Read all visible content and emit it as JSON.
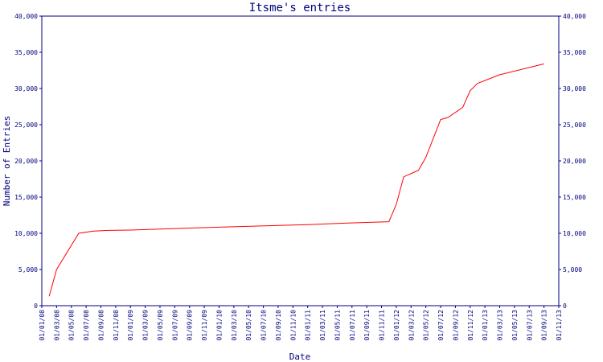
{
  "chart_data": {
    "type": "line",
    "title": "Itsme's entries",
    "x_label": "Date",
    "y_label": "Number of Entries",
    "x": [
      "01/02/08",
      "01/03/08",
      "01/06/08",
      "01/08/08",
      "01/10/08",
      "01/01/09",
      "01/01/10",
      "01/01/11",
      "01/06/11",
      "01/12/11",
      "01/01/12",
      "01/02/12",
      "01/04/12",
      "01/05/12",
      "01/07/12",
      "01/08/12",
      "01/10/12",
      "01/11/12",
      "01/12/12",
      "01/03/13",
      "01/09/13"
    ],
    "series": [
      {
        "name": "Entries",
        "color": "#ff0000",
        "values": [
          1300,
          5000,
          10000,
          10300,
          10400,
          10450,
          10850,
          11200,
          11400,
          11600,
          14000,
          17800,
          18700,
          20500,
          25700,
          26000,
          27400,
          29700,
          30700,
          31900,
          33400
        ]
      }
    ],
    "xlim": [
      "01/01/08",
      "01/11/13"
    ],
    "xticks": [
      "01/01/08",
      "01/03/08",
      "01/05/08",
      "01/07/08",
      "01/09/08",
      "01/11/08",
      "01/01/09",
      "01/03/09",
      "01/05/09",
      "01/07/09",
      "01/09/09",
      "01/11/09",
      "01/01/10",
      "01/03/10",
      "01/05/10",
      "01/07/10",
      "01/09/10",
      "01/11/10",
      "01/01/11",
      "01/03/11",
      "01/05/11",
      "01/07/11",
      "01/09/11",
      "01/11/11",
      "01/01/12",
      "01/03/12",
      "01/05/12",
      "01/07/12",
      "01/09/12",
      "01/11/12",
      "01/01/13",
      "01/03/13",
      "01/05/13",
      "01/07/13",
      "01/09/13",
      "01/11/13"
    ],
    "ylim": [
      0,
      40000
    ],
    "yticks": [
      0,
      {
        "value": 5000,
        "label": "5,000"
      },
      {
        "value": 10000,
        "label": "10,000"
      },
      {
        "value": 15000,
        "label": "15,000"
      },
      {
        "value": 20000,
        "label": "20,000"
      },
      {
        "value": 25000,
        "label": "25,000"
      },
      {
        "value": 30000,
        "label": "30,000"
      },
      {
        "value": 35000,
        "label": "35,000"
      },
      {
        "value": 40000,
        "label": "40,000"
      }
    ]
  }
}
